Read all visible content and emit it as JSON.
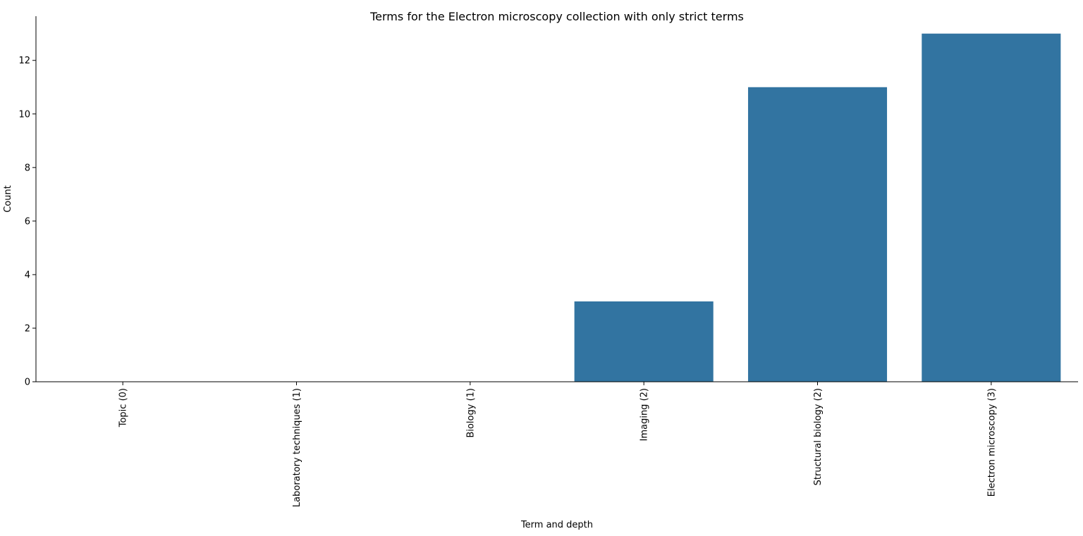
{
  "chart_data": {
    "type": "bar",
    "title": "Terms for the Electron microscopy collection with only strict terms",
    "xlabel": "Term and depth",
    "ylabel": "Count",
    "categories": [
      "Topic (0)",
      "Laboratory techniques (1)",
      "Biology (1)",
      "Imaging (2)",
      "Structural biology (2)",
      "Electron microscopy (3)"
    ],
    "values": [
      0,
      0,
      0,
      3,
      11,
      13
    ],
    "ylim": [
      0,
      13.65
    ],
    "yticks": [
      0,
      2,
      4,
      6,
      8,
      10,
      12
    ],
    "grid": false,
    "legend": "none",
    "bar_color": "#3274a1",
    "x_tick_rotation": 90
  }
}
